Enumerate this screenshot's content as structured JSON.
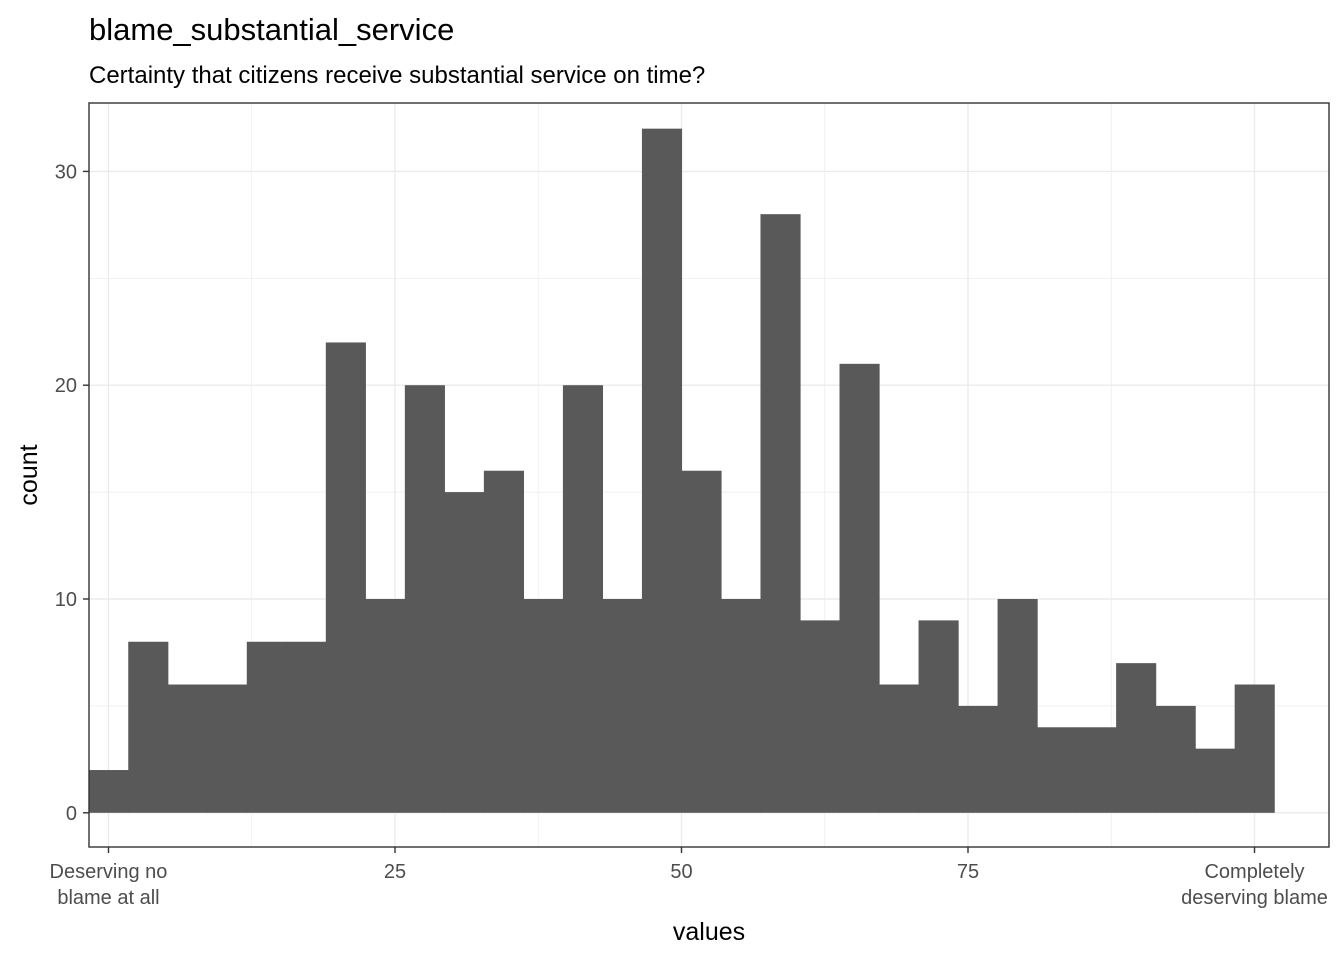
{
  "chart_data": {
    "type": "bar",
    "title": "blame_substantial_service",
    "subtitle": "Certainty that citizens receive substantial service on time?",
    "xlabel": "values",
    "ylabel": "count",
    "xlim": [
      -1.7,
      106.5
    ],
    "ylim": [
      -1.6,
      33.2
    ],
    "bin_width": 3.448,
    "bin_start": -1.724,
    "values": [
      2,
      8,
      6,
      6,
      8,
      8,
      22,
      10,
      20,
      15,
      16,
      10,
      20,
      10,
      32,
      16,
      10,
      28,
      9,
      21,
      6,
      9,
      5,
      10,
      4,
      4,
      7,
      5,
      3,
      6
    ],
    "x_ticks": [
      {
        "value": 0,
        "label": [
          "Deserving no",
          "blame at all"
        ]
      },
      {
        "value": 25,
        "label": [
          "25"
        ]
      },
      {
        "value": 50,
        "label": [
          "50"
        ]
      },
      {
        "value": 75,
        "label": [
          "75"
        ]
      },
      {
        "value": 100,
        "label": [
          "Completely",
          "deserving blame"
        ]
      }
    ],
    "y_ticks": [
      0,
      10,
      20,
      30
    ],
    "grid": true,
    "bar_color": "#595959",
    "grid_color": "#ebebeb",
    "panel_border_color": "#333333"
  }
}
